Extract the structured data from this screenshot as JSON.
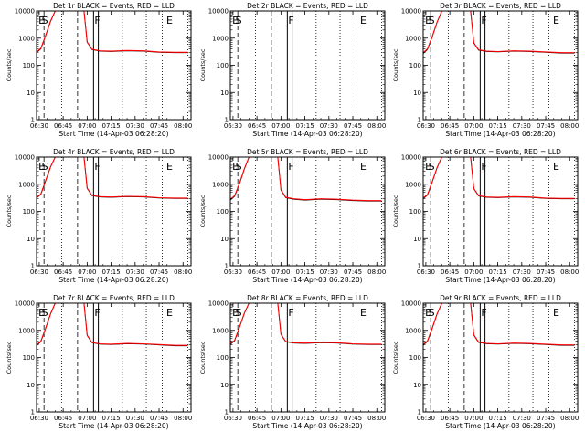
{
  "figure": {
    "ylabel": "Counts/sec",
    "xlabel": "Start Time (14-Apr-03 06:28:20)",
    "line_colors": {
      "events": "#000000",
      "lld": "#ff0000"
    },
    "xticks": [
      "06:30",
      "06:45",
      "07:00",
      "07:15",
      "07:30",
      "07:45",
      "08:00"
    ],
    "yticks": [
      "1",
      "10",
      "100",
      "1000",
      "10000"
    ]
  },
  "chart_data": [
    {
      "type": "line",
      "title": "Det 1r BLACK = Events, RED = LLD",
      "scale": "log",
      "ylim": [
        1,
        10000
      ],
      "xlim": [
        "06:28:20",
        "08:05:00"
      ],
      "grid": false,
      "markers": [
        "E",
        "S",
        "F",
        "E"
      ],
      "series": [
        {
          "name": "Events",
          "color": "#000000",
          "x": [
            "06:28",
            "06:31",
            "06:34",
            "06:37",
            "06:40",
            "06:50",
            "06:58",
            "07:00",
            "07:03",
            "07:08",
            "07:15",
            "07:25",
            "07:35",
            "07:45",
            "07:55",
            "08:03"
          ],
          "y": [
            280,
            400,
            1200,
            4000,
            10000,
            10000,
            10000,
            700,
            380,
            330,
            320,
            340,
            330,
            300,
            290,
            290
          ]
        },
        {
          "name": "LLD",
          "color": "#ff0000",
          "x": [
            "06:28",
            "06:31",
            "06:34",
            "06:37",
            "06:40",
            "06:50",
            "06:58",
            "07:00",
            "07:03",
            "07:08",
            "07:15",
            "07:25",
            "07:35",
            "07:45",
            "07:55",
            "08:03"
          ],
          "y": [
            300,
            420,
            1250,
            4100,
            10000,
            10000,
            10000,
            720,
            390,
            340,
            330,
            350,
            340,
            310,
            300,
            300
          ]
        }
      ]
    },
    {
      "type": "line",
      "title": "Det 2r BLACK = Events, RED = LLD",
      "scale": "log",
      "ylim": [
        1,
        10000
      ],
      "xlim": [
        "06:28:20",
        "08:05:00"
      ],
      "grid": false,
      "markers": [
        "E",
        "S",
        "F",
        "E"
      ],
      "series": []
    },
    {
      "type": "line",
      "title": "Det 3r BLACK = Events, RED = LLD",
      "scale": "log",
      "ylim": [
        1,
        10000
      ],
      "xlim": [
        "06:28:20",
        "08:05:00"
      ],
      "grid": false,
      "markers": [
        "E",
        "S",
        "F",
        "E"
      ],
      "series": [
        {
          "name": "Events",
          "color": "#000000",
          "x": [
            "06:28",
            "06:31",
            "06:34",
            "06:37",
            "06:40",
            "06:50",
            "06:58",
            "07:00",
            "07:03",
            "07:08",
            "07:15",
            "07:25",
            "07:35",
            "07:45",
            "07:55",
            "08:03"
          ],
          "y": [
            260,
            380,
            1100,
            3800,
            10000,
            10000,
            10000,
            650,
            360,
            320,
            310,
            330,
            320,
            300,
            280,
            280
          ]
        },
        {
          "name": "LLD",
          "color": "#ff0000",
          "x": [
            "06:28",
            "06:31",
            "06:34",
            "06:37",
            "06:40",
            "06:50",
            "06:58",
            "07:00",
            "07:03",
            "07:08",
            "07:15",
            "07:25",
            "07:35",
            "07:45",
            "07:55",
            "08:03"
          ],
          "y": [
            280,
            400,
            1150,
            3900,
            10000,
            10000,
            10000,
            670,
            370,
            330,
            320,
            340,
            330,
            310,
            290,
            290
          ]
        }
      ]
    },
    {
      "type": "line",
      "title": "Det 4r BLACK = Events, RED = LLD",
      "scale": "log",
      "ylim": [
        1,
        10000
      ],
      "xlim": [
        "06:28:20",
        "08:05:00"
      ],
      "grid": false,
      "markers": [
        "E",
        "S",
        "F",
        "E"
      ],
      "series": [
        {
          "name": "Events",
          "color": "#000000",
          "x": [
            "06:28",
            "06:31",
            "06:34",
            "06:37",
            "06:40",
            "06:50",
            "06:58",
            "07:00",
            "07:03",
            "07:08",
            "07:15",
            "07:25",
            "07:35",
            "07:45",
            "07:55",
            "08:03"
          ],
          "y": [
            300,
            420,
            1300,
            4200,
            10000,
            10000,
            10000,
            700,
            380,
            340,
            330,
            350,
            340,
            310,
            300,
            300
          ]
        },
        {
          "name": "LLD",
          "color": "#ff0000",
          "x": [
            "06:28",
            "06:31",
            "06:34",
            "06:37",
            "06:40",
            "06:50",
            "06:58",
            "07:00",
            "07:03",
            "07:08",
            "07:15",
            "07:25",
            "07:35",
            "07:45",
            "07:55",
            "08:03"
          ],
          "y": [
            320,
            440,
            1350,
            4300,
            10000,
            10000,
            10000,
            720,
            390,
            350,
            340,
            360,
            350,
            320,
            310,
            310
          ]
        }
      ]
    },
    {
      "type": "line",
      "title": "Det 5r BLACK = Events, RED = LLD",
      "scale": "log",
      "ylim": [
        1,
        10000
      ],
      "xlim": [
        "06:28:20",
        "08:05:00"
      ],
      "grid": false,
      "markers": [
        "E",
        "S",
        "F",
        "E"
      ],
      "series": [
        {
          "name": "Events",
          "color": "#000000",
          "x": [
            "06:28",
            "06:31",
            "06:34",
            "06:37",
            "06:40",
            "06:50",
            "06:58",
            "07:00",
            "07:03",
            "07:08",
            "07:15",
            "07:25",
            "07:35",
            "07:45",
            "07:55",
            "08:03"
          ],
          "y": [
            250,
            360,
            1000,
            3500,
            10000,
            10000,
            10000,
            600,
            320,
            280,
            260,
            280,
            270,
            250,
            240,
            240
          ]
        },
        {
          "name": "LLD",
          "color": "#ff0000",
          "x": [
            "06:28",
            "06:31",
            "06:34",
            "06:37",
            "06:40",
            "06:50",
            "06:58",
            "07:00",
            "07:03",
            "07:08",
            "07:15",
            "07:25",
            "07:35",
            "07:45",
            "07:55",
            "08:03"
          ],
          "y": [
            270,
            380,
            1050,
            3600,
            10000,
            10000,
            10000,
            620,
            330,
            290,
            270,
            290,
            280,
            260,
            250,
            250
          ]
        }
      ]
    },
    {
      "type": "line",
      "title": "Det 6r BLACK = Events, RED = LLD",
      "scale": "log",
      "ylim": [
        1,
        10000
      ],
      "xlim": [
        "06:28:20",
        "08:05:00"
      ],
      "grid": false,
      "markers": [
        "E",
        "S",
        "F",
        "E"
      ],
      "series": [
        {
          "name": "Events",
          "color": "#000000",
          "x": [
            "06:28",
            "06:31",
            "06:34",
            "06:37",
            "06:40",
            "06:50",
            "06:58",
            "07:00",
            "07:03",
            "07:08",
            "07:15",
            "07:25",
            "07:35",
            "07:45",
            "07:55",
            "08:03"
          ],
          "y": [
            280,
            400,
            1200,
            4000,
            10000,
            10000,
            10000,
            680,
            370,
            330,
            320,
            340,
            330,
            300,
            290,
            290
          ]
        },
        {
          "name": "LLD",
          "color": "#ff0000",
          "x": [
            "06:28",
            "06:31",
            "06:34",
            "06:37",
            "06:40",
            "06:50",
            "06:58",
            "07:00",
            "07:03",
            "07:08",
            "07:15",
            "07:25",
            "07:35",
            "07:45",
            "07:55",
            "08:03"
          ],
          "y": [
            300,
            420,
            1250,
            4100,
            10000,
            10000,
            10000,
            700,
            380,
            340,
            330,
            350,
            340,
            310,
            300,
            300
          ]
        }
      ]
    },
    {
      "type": "line",
      "title": "Det 7r BLACK = Events, RED = LLD",
      "scale": "log",
      "ylim": [
        1,
        10000
      ],
      "xlim": [
        "06:28:20",
        "08:05:00"
      ],
      "grid": false,
      "markers": [
        "E",
        "S",
        "F",
        "E"
      ],
      "series": [
        {
          "name": "Events",
          "color": "#000000",
          "x": [
            "06:28",
            "06:31",
            "06:34",
            "06:37",
            "06:40",
            "06:50",
            "06:58",
            "07:00",
            "07:03",
            "07:08",
            "07:15",
            "07:25",
            "07:35",
            "07:45",
            "07:55",
            "08:03"
          ],
          "y": [
            260,
            380,
            1150,
            3900,
            10000,
            10000,
            10000,
            640,
            350,
            310,
            300,
            320,
            310,
            290,
            270,
            270
          ]
        },
        {
          "name": "LLD",
          "color": "#ff0000",
          "x": [
            "06:28",
            "06:31",
            "06:34",
            "06:37",
            "06:40",
            "06:50",
            "06:58",
            "07:00",
            "07:03",
            "07:08",
            "07:15",
            "07:25",
            "07:35",
            "07:45",
            "07:55",
            "08:03"
          ],
          "y": [
            280,
            400,
            1200,
            4000,
            10000,
            10000,
            10000,
            660,
            360,
            320,
            310,
            330,
            320,
            300,
            280,
            280
          ]
        }
      ]
    },
    {
      "type": "line",
      "title": "Det 8r BLACK = Events, RED = LLD",
      "scale": "log",
      "ylim": [
        1,
        10000
      ],
      "xlim": [
        "06:28:20",
        "08:05:00"
      ],
      "grid": false,
      "markers": [
        "E",
        "S",
        "F",
        "E"
      ],
      "series": [
        {
          "name": "Events",
          "color": "#000000",
          "x": [
            "06:28",
            "06:31",
            "06:34",
            "06:37",
            "06:40",
            "06:50",
            "06:58",
            "07:00",
            "07:03",
            "07:08",
            "07:15",
            "07:25",
            "07:35",
            "07:45",
            "07:55",
            "08:03"
          ],
          "y": [
            290,
            410,
            1250,
            4100,
            10000,
            10000,
            10000,
            700,
            380,
            340,
            330,
            350,
            340,
            310,
            300,
            300
          ]
        },
        {
          "name": "LLD",
          "color": "#ff0000",
          "x": [
            "06:28",
            "06:31",
            "06:34",
            "06:37",
            "06:40",
            "06:50",
            "06:58",
            "07:00",
            "07:03",
            "07:08",
            "07:15",
            "07:25",
            "07:35",
            "07:45",
            "07:55",
            "08:03"
          ],
          "y": [
            310,
            430,
            1300,
            4200,
            10000,
            10000,
            10000,
            720,
            390,
            350,
            340,
            360,
            350,
            320,
            310,
            310
          ]
        }
      ]
    },
    {
      "type": "line",
      "title": "Det 9r BLACK = Events, RED = LLD",
      "scale": "log",
      "ylim": [
        1,
        10000
      ],
      "xlim": [
        "06:28:20",
        "08:05:00"
      ],
      "grid": false,
      "markers": [
        "E",
        "S",
        "F",
        "E"
      ],
      "series": [
        {
          "name": "Events",
          "color": "#000000",
          "x": [
            "06:28",
            "06:31",
            "06:34",
            "06:37",
            "06:40",
            "06:50",
            "06:58",
            "07:00",
            "07:03",
            "07:08",
            "07:15",
            "07:25",
            "07:35",
            "07:45",
            "07:55",
            "08:03"
          ],
          "y": [
            270,
            390,
            1180,
            3950,
            10000,
            10000,
            10000,
            660,
            360,
            320,
            310,
            330,
            320,
            300,
            280,
            280
          ]
        },
        {
          "name": "LLD",
          "color": "#ff0000",
          "x": [
            "06:28",
            "06:31",
            "06:34",
            "06:37",
            "06:40",
            "06:50",
            "06:58",
            "07:00",
            "07:03",
            "07:08",
            "07:15",
            "07:25",
            "07:35",
            "07:45",
            "07:55",
            "08:03"
          ],
          "y": [
            290,
            410,
            1230,
            4050,
            10000,
            10000,
            10000,
            680,
            370,
            330,
            320,
            340,
            330,
            310,
            290,
            290
          ]
        }
      ]
    }
  ]
}
